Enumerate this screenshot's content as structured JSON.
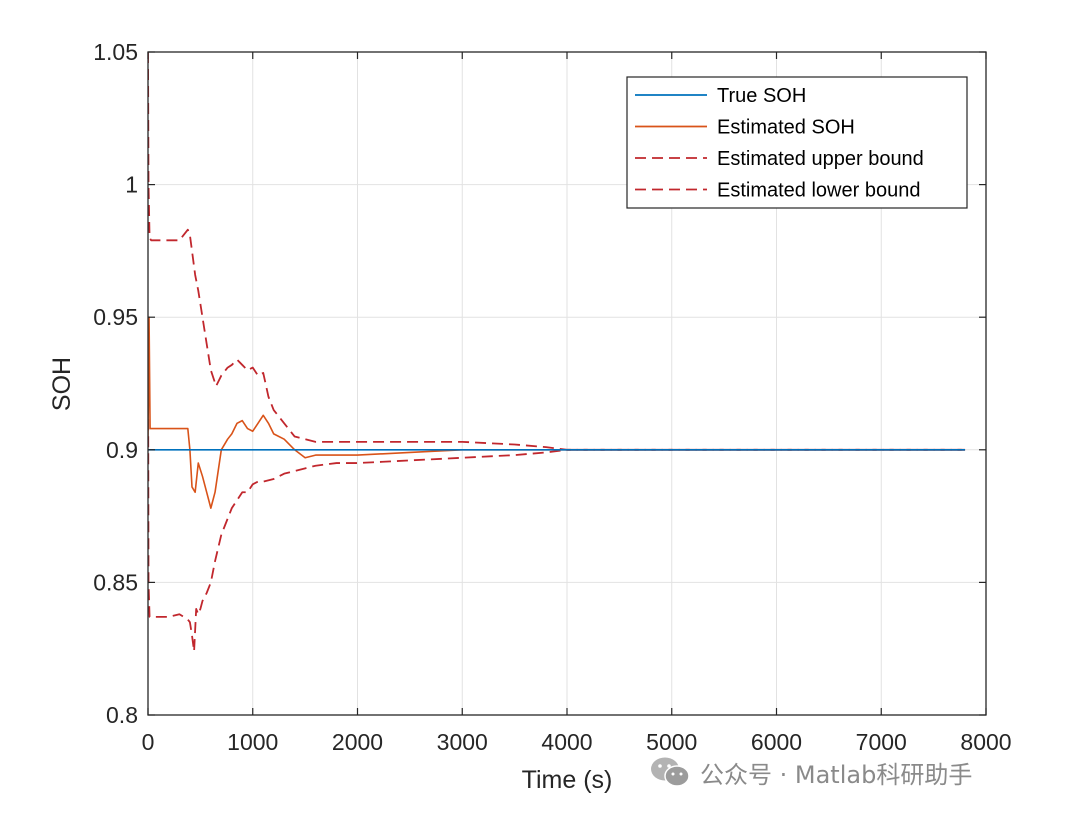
{
  "chart_data": {
    "type": "line",
    "title": "",
    "xlabel": "Time (s)",
    "ylabel": "SOH",
    "xlim": [
      0,
      8000
    ],
    "ylim": [
      0.8,
      1.05
    ],
    "xticks": [
      0,
      1000,
      2000,
      3000,
      4000,
      5000,
      6000,
      7000,
      8000
    ],
    "xtick_labels": [
      "0",
      "1000",
      "2000",
      "3000",
      "4000",
      "5000",
      "6000",
      "7000",
      "8000"
    ],
    "yticks": [
      0.8,
      0.85,
      0.9,
      0.95,
      1.0,
      1.05
    ],
    "ytick_labels": [
      "0.8",
      "0.85",
      "0.9",
      "0.95",
      "1",
      "1.05"
    ],
    "grid": true,
    "legend_position": "top-right",
    "series": [
      {
        "name": "True SOH",
        "style": "solid",
        "color": "#0072bd",
        "x": [
          0,
          7800
        ],
        "y": [
          0.9,
          0.9
        ]
      },
      {
        "name": "Estimated SOH",
        "style": "solid",
        "color": "#d95319",
        "x": [
          0,
          10,
          20,
          40,
          100,
          200,
          300,
          380,
          400,
          420,
          450,
          480,
          520,
          560,
          600,
          640,
          700,
          760,
          800,
          850,
          900,
          950,
          1000,
          1050,
          1100,
          1150,
          1200,
          1300,
          1400,
          1500,
          1600,
          1800,
          2000,
          2500,
          3000,
          3500,
          3800,
          4000,
          5000,
          6000,
          7000,
          7800
        ],
        "y": [
          0.905,
          0.95,
          0.908,
          0.908,
          0.908,
          0.908,
          0.908,
          0.908,
          0.9,
          0.886,
          0.884,
          0.895,
          0.89,
          0.884,
          0.878,
          0.884,
          0.9,
          0.904,
          0.906,
          0.91,
          0.911,
          0.908,
          0.907,
          0.91,
          0.913,
          0.91,
          0.906,
          0.904,
          0.9,
          0.897,
          0.898,
          0.898,
          0.898,
          0.899,
          0.9,
          0.9,
          0.9,
          0.9,
          0.9,
          0.9,
          0.9,
          0.9
        ]
      },
      {
        "name": "Estimated upper bound",
        "style": "dashed",
        "color": "#c1272d",
        "x": [
          0,
          5,
          15,
          30,
          100,
          200,
          300,
          380,
          400,
          420,
          450,
          480,
          500,
          520,
          560,
          600,
          650,
          700,
          760,
          800,
          850,
          900,
          950,
          1000,
          1050,
          1100,
          1150,
          1200,
          1300,
          1400,
          1500,
          1600,
          1800,
          2000,
          2500,
          3000,
          3500,
          3800,
          4000,
          5000,
          6000,
          7000,
          7800
        ],
        "y": [
          1.05,
          1.0,
          0.98,
          0.979,
          0.979,
          0.979,
          0.979,
          0.983,
          0.981,
          0.975,
          0.966,
          0.96,
          0.955,
          0.95,
          0.94,
          0.93,
          0.924,
          0.928,
          0.931,
          0.932,
          0.934,
          0.932,
          0.93,
          0.931,
          0.928,
          0.929,
          0.92,
          0.915,
          0.91,
          0.905,
          0.904,
          0.903,
          0.903,
          0.903,
          0.903,
          0.903,
          0.902,
          0.901,
          0.9,
          0.9,
          0.9,
          0.9,
          0.9
        ]
      },
      {
        "name": "Estimated lower bound",
        "style": "dashed",
        "color": "#c1272d",
        "x": [
          0,
          5,
          15,
          30,
          100,
          200,
          300,
          380,
          400,
          420,
          440,
          460,
          480,
          500,
          520,
          560,
          600,
          640,
          700,
          760,
          800,
          850,
          900,
          950,
          1000,
          1050,
          1100,
          1200,
          1300,
          1400,
          1500,
          1600,
          1800,
          2000,
          2500,
          3000,
          3500,
          3800,
          4000,
          5000,
          6000,
          7000,
          7800
        ],
        "y": [
          0.95,
          0.85,
          0.837,
          0.837,
          0.837,
          0.837,
          0.838,
          0.836,
          0.835,
          0.83,
          0.824,
          0.84,
          0.838,
          0.84,
          0.843,
          0.846,
          0.85,
          0.858,
          0.868,
          0.874,
          0.878,
          0.881,
          0.884,
          0.884,
          0.887,
          0.888,
          0.888,
          0.889,
          0.891,
          0.892,
          0.893,
          0.894,
          0.895,
          0.895,
          0.896,
          0.897,
          0.898,
          0.899,
          0.9,
          0.9,
          0.9,
          0.9,
          0.9
        ]
      }
    ]
  },
  "watermark": {
    "text": "公众号 · Matlab科研助手",
    "logo_icon": "wechat-icon"
  }
}
